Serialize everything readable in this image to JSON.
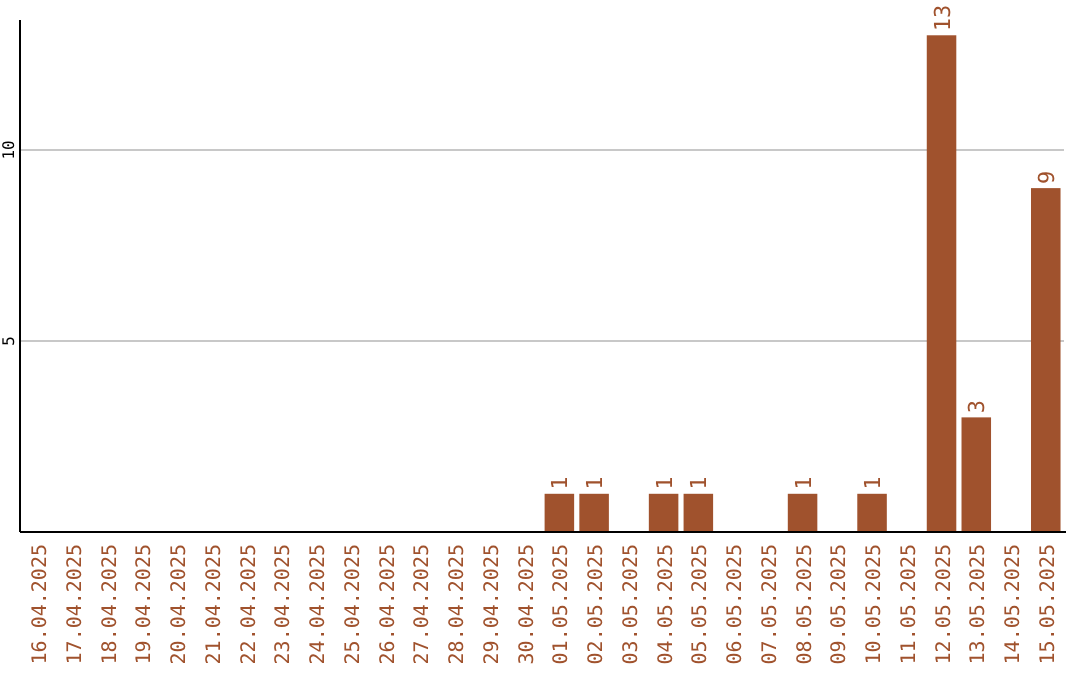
{
  "chart_data": {
    "type": "bar",
    "categories": [
      "16.04.2025",
      "17.04.2025",
      "18.04.2025",
      "19.04.2025",
      "20.04.2025",
      "21.04.2025",
      "22.04.2025",
      "23.04.2025",
      "24.04.2025",
      "25.04.2025",
      "26.04.2025",
      "27.04.2025",
      "28.04.2025",
      "29.04.2025",
      "30.04.2025",
      "01.05.2025",
      "02.05.2025",
      "03.05.2025",
      "04.05.2025",
      "05.05.2025",
      "06.05.2025",
      "07.05.2025",
      "08.05.2025",
      "09.05.2025",
      "10.05.2025",
      "11.05.2025",
      "12.05.2025",
      "13.05.2025",
      "14.05.2025",
      "15.05.2025"
    ],
    "values": [
      0,
      0,
      0,
      0,
      0,
      0,
      0,
      0,
      0,
      0,
      0,
      0,
      0,
      0,
      0,
      1,
      1,
      0,
      1,
      1,
      0,
      0,
      1,
      0,
      1,
      0,
      13,
      3,
      0,
      9
    ],
    "value_labels": [
      null,
      null,
      null,
      null,
      null,
      null,
      null,
      null,
      null,
      null,
      null,
      null,
      null,
      null,
      null,
      "1",
      "1",
      null,
      "1",
      "1",
      null,
      null,
      "1",
      null,
      "1",
      null,
      "13",
      "3",
      null,
      "9"
    ],
    "color": "#a0522d",
    "ylim": [
      0,
      13.4
    ],
    "yticks": [
      5,
      10
    ],
    "grid": "y"
  }
}
